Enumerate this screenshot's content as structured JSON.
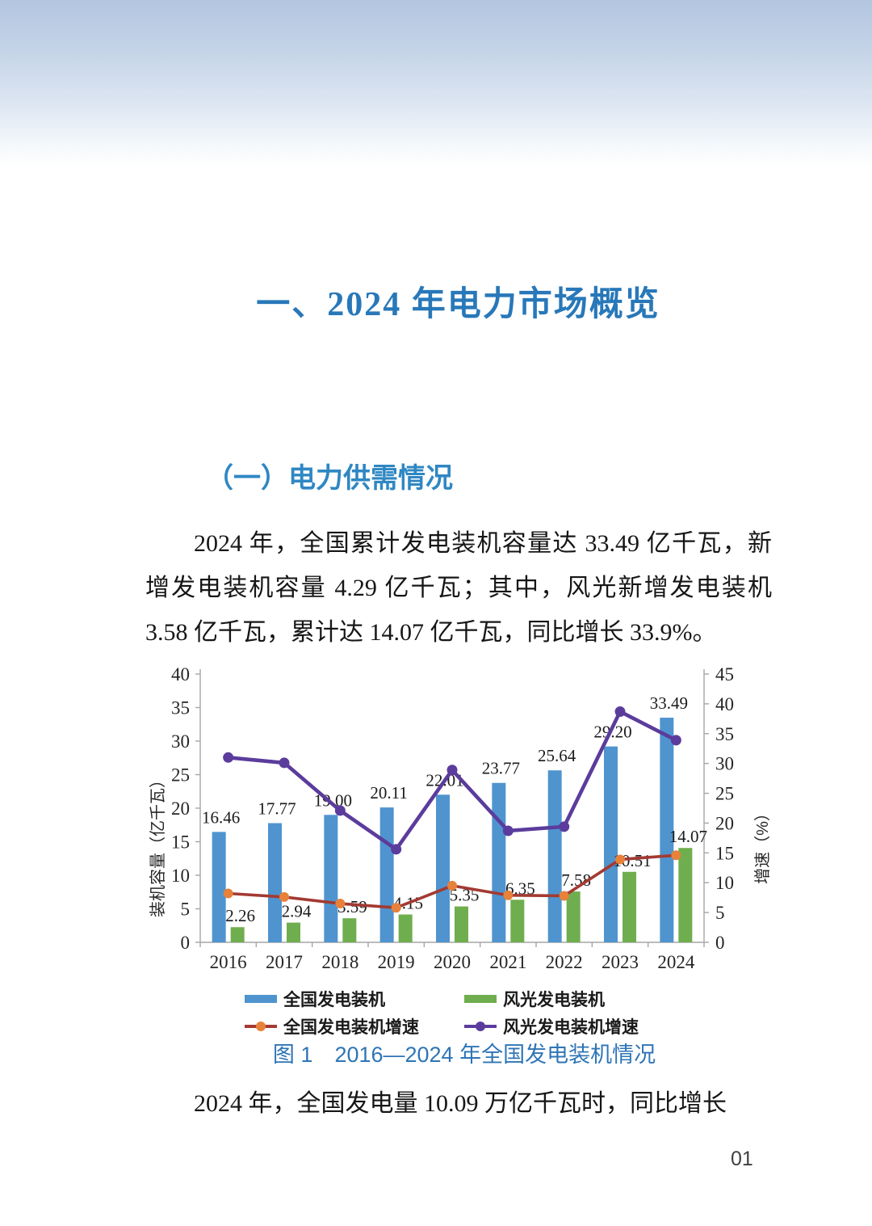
{
  "page": {
    "title": "一、2024 年电力市场概览",
    "section_heading": "（一）电力供需情况",
    "paragraph1": "2024 年，全国累计发电装机容量达 33.49 亿千瓦，新增发电装机容量 4.29 亿千瓦；其中，风光新增发电装机 3.58 亿千瓦，累计达 14.07 亿千瓦，同比增长 33.9%。",
    "figure_caption": "图 1　2016—2024 年全国发电装机情况",
    "paragraph2": "2024 年，全国发电量 10.09 万亿千瓦时，同比增长",
    "page_number": "01"
  },
  "chart_data": {
    "type": "bar+line combo",
    "categories": [
      "2016",
      "2017",
      "2018",
      "2019",
      "2020",
      "2021",
      "2022",
      "2023",
      "2024"
    ],
    "series": [
      {
        "name": "全国发电装机",
        "type": "bar",
        "axis": "left",
        "color": "#4f94cf",
        "values": [
          16.46,
          17.77,
          19.0,
          20.11,
          22.01,
          23.77,
          25.64,
          29.2,
          33.49
        ],
        "labels": [
          "16.46",
          "17.77",
          "19.00",
          "20.11",
          "22.01",
          "23.77",
          "25.64",
          "29.20",
          "33.49"
        ]
      },
      {
        "name": "风光发电装机",
        "type": "bar",
        "axis": "left",
        "color": "#6fae4e",
        "values": [
          2.26,
          2.94,
          3.59,
          4.15,
          5.35,
          6.35,
          7.58,
          10.51,
          14.07
        ],
        "labels": [
          "2.26",
          "2.94",
          "3.59",
          "4.15",
          "5.35",
          "6.35",
          "7.58",
          "10.51",
          "14.07"
        ]
      },
      {
        "name": "全国发电装机增速",
        "type": "line",
        "axis": "right",
        "color": "#a33a32",
        "marker_color": "#e8813a",
        "values": [
          8.2,
          7.6,
          6.5,
          5.8,
          9.5,
          7.9,
          7.8,
          13.9,
          14.6
        ]
      },
      {
        "name": "风光发电装机增速",
        "type": "line",
        "axis": "right",
        "color": "#5b3c9c",
        "marker_color": "#5b3c9c",
        "values": [
          31.0,
          30.1,
          22.1,
          15.6,
          28.9,
          18.7,
          19.4,
          38.7,
          33.9
        ]
      }
    ],
    "left_axis": {
      "label": "装机容量（亿千瓦）",
      "min": 0,
      "max": 40,
      "step": 5
    },
    "right_axis": {
      "label": "增速（%）",
      "min": 0,
      "max": 45,
      "step": 5
    },
    "grid": false,
    "legend_position": "bottom",
    "bar_value_labels": true
  }
}
